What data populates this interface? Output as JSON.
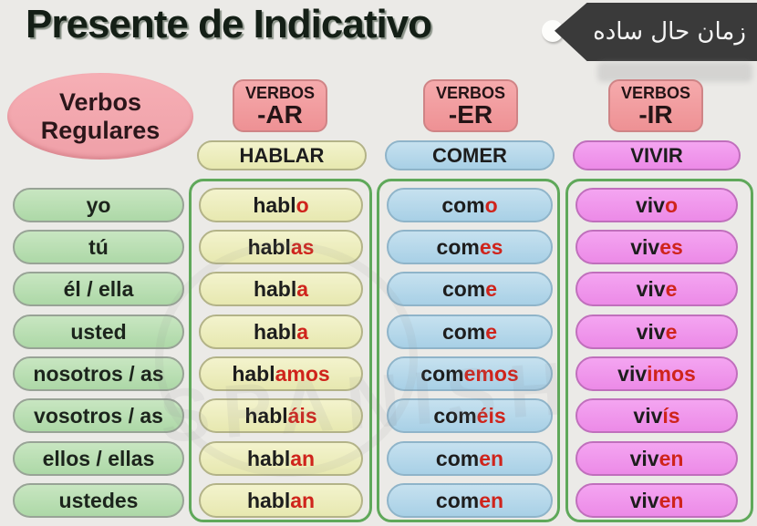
{
  "header": {
    "title": "Presente de Indicativo",
    "tag_label": "زمان حال ساده",
    "regulares_line1": "Verbos",
    "regulares_line2": "Regulares"
  },
  "watermark": "SPANISH",
  "pronouns": [
    "yo",
    "tú",
    "él / ella",
    "usted",
    "nosotros / as",
    "vosotros / as",
    "ellos / ellas",
    "ustedes"
  ],
  "columns": [
    {
      "group_label": "VERBOS",
      "suffix": "-AR",
      "verb": "HABLAR",
      "forms": [
        {
          "stem": "habl",
          "ending": "o"
        },
        {
          "stem": "habl",
          "ending": "as"
        },
        {
          "stem": "habl",
          "ending": "a"
        },
        {
          "stem": "habl",
          "ending": "a"
        },
        {
          "stem": "habl",
          "ending": "amos"
        },
        {
          "stem": "habl",
          "ending": "áis"
        },
        {
          "stem": "habl",
          "ending": "an"
        },
        {
          "stem": "habl",
          "ending": "an"
        }
      ]
    },
    {
      "group_label": "VERBOS",
      "suffix": "-ER",
      "verb": "COMER",
      "forms": [
        {
          "stem": "com",
          "ending": "o"
        },
        {
          "stem": "com",
          "ending": "es"
        },
        {
          "stem": "com",
          "ending": "e"
        },
        {
          "stem": "com",
          "ending": "e"
        },
        {
          "stem": "com",
          "ending": "emos"
        },
        {
          "stem": "com",
          "ending": "éis"
        },
        {
          "stem": "com",
          "ending": "en"
        },
        {
          "stem": "com",
          "ending": "en"
        }
      ]
    },
    {
      "group_label": "VERBOS",
      "suffix": "-IR",
      "verb": "VIVIR",
      "forms": [
        {
          "stem": "viv",
          "ending": "o"
        },
        {
          "stem": "viv",
          "ending": "es"
        },
        {
          "stem": "viv",
          "ending": "e"
        },
        {
          "stem": "viv",
          "ending": "e"
        },
        {
          "stem": "viv",
          "ending": "imos"
        },
        {
          "stem": "viv",
          "ending": "ís"
        },
        {
          "stem": "viv",
          "ending": "en"
        },
        {
          "stem": "viv",
          "ending": "en"
        }
      ]
    }
  ],
  "colors": {
    "background": "#ebeae7",
    "ending_red": "#cf241c",
    "container_green": "#5fa85a",
    "pronoun_pill_green": "#b8dfb2",
    "hablar_yellow": "#ecedbc",
    "comer_blue": "#b2d7ea",
    "vivir_pink": "#ef97ec",
    "header_pink": "#f19b9e",
    "tag_dark": "#3a3a3a"
  }
}
